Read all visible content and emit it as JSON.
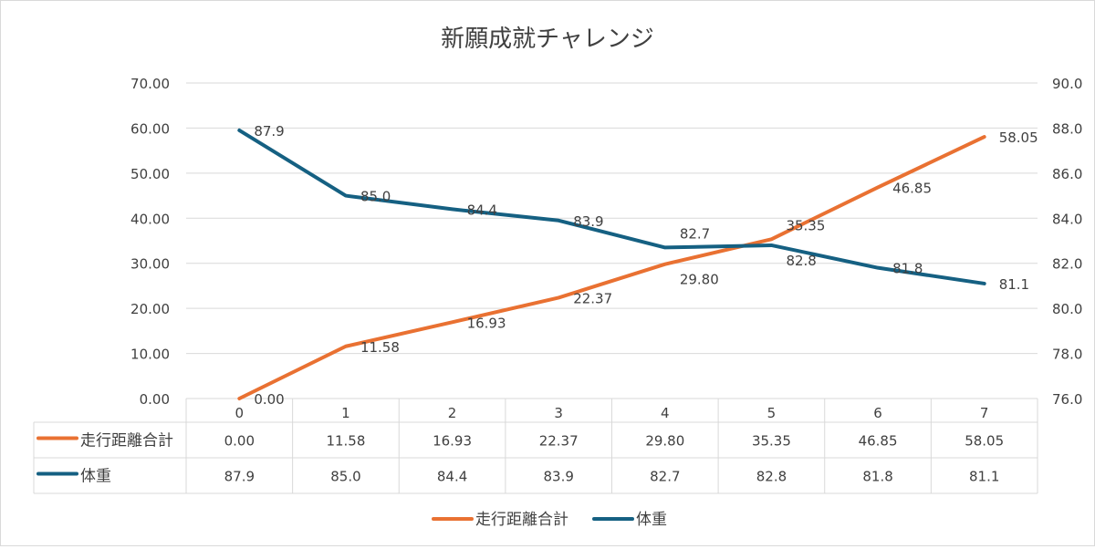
{
  "chart_data": {
    "type": "line",
    "title": "新願成就チャレンジ",
    "categories": [
      "0",
      "1",
      "2",
      "3",
      "4",
      "5",
      "6",
      "7"
    ],
    "series": [
      {
        "name": "走行距離合計",
        "axis": "left",
        "color": "#E97132",
        "values": [
          0.0,
          11.58,
          16.93,
          22.37,
          29.8,
          35.35,
          46.85,
          58.05
        ],
        "labels": [
          "0.00",
          "11.58",
          "16.93",
          "22.37",
          "29.80",
          "35.35",
          "46.85",
          "58.05"
        ]
      },
      {
        "name": "体重",
        "axis": "right",
        "color": "#156082",
        "values": [
          87.9,
          85.0,
          84.4,
          83.9,
          82.7,
          82.8,
          81.8,
          81.1
        ],
        "labels": [
          "87.9",
          "85.0",
          "84.4",
          "83.9",
          "82.7",
          "82.8",
          "81.8",
          "81.1"
        ]
      }
    ],
    "y_left": {
      "range": [
        0,
        70
      ],
      "ticks": [
        "0.00",
        "10.00",
        "20.00",
        "30.00",
        "40.00",
        "50.00",
        "60.00",
        "70.00"
      ]
    },
    "y_right": {
      "range": [
        76,
        90
      ],
      "ticks": [
        "76.0",
        "78.0",
        "80.0",
        "82.0",
        "84.0",
        "86.0",
        "88.0",
        "90.0"
      ]
    },
    "grid": true,
    "data_table": true,
    "legend": "bottom"
  }
}
